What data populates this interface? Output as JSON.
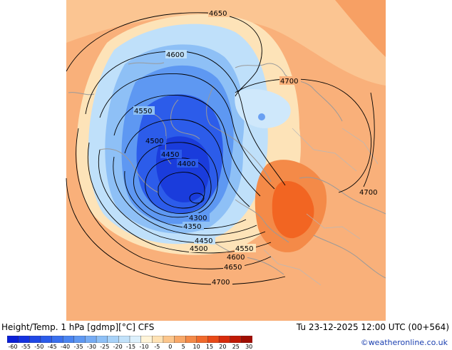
{
  "header": {
    "title": "Height/Temp. 1 hPa [gdmp][°C] CFS",
    "datetime": "Tu 23-12-2025 12:00 UTC (00+564)",
    "credit": "©weatheronline.co.uk"
  },
  "contour_labels": [
    "4650",
    "4600",
    "4700",
    "4550",
    "4500",
    "4450",
    "4400",
    "4300",
    "4350",
    "4450",
    "4500",
    "4550",
    "4600",
    "4650",
    "4700",
    "4700"
  ],
  "colorbar": {
    "ticks": [
      "-60",
      "-55",
      "-50",
      "-45",
      "-40",
      "-35",
      "-30",
      "-25",
      "-20",
      "-15",
      "-10",
      "-5",
      "0",
      "5",
      "10",
      "15",
      "20",
      "25",
      "30"
    ],
    "colors": [
      "#0a1fd8",
      "#1432e0",
      "#2048e6",
      "#2c5cea",
      "#3a70ee",
      "#4a84f0",
      "#5e98f2",
      "#76acf4",
      "#8ec0f6",
      "#a8d2f8",
      "#c2e2fa",
      "#dcf0fc",
      "#fff4d8",
      "#ffe2b4",
      "#fcc68c",
      "#f8a868",
      "#f48a48",
      "#f06a2c",
      "#e84a18",
      "#d82c0c",
      "#c01a06",
      "#a00e02"
    ]
  },
  "colors": {
    "background_orange": "#f9b07a",
    "warm_core": "#f26522",
    "cold_core": "#1e4be0"
  }
}
